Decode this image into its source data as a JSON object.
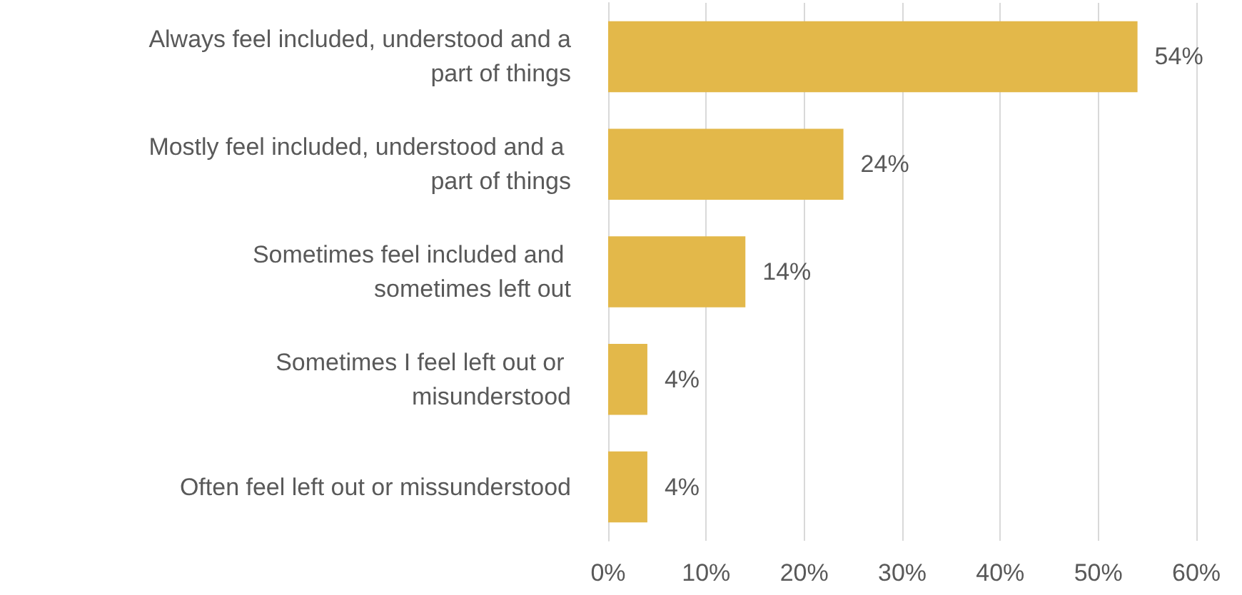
{
  "chart_data": {
    "type": "bar",
    "orientation": "horizontal",
    "categories": [
      "Always feel included, understood and a part of things",
      "Mostly feel included, understood and a part of things",
      "Sometimes feel included and sometimes left out",
      "Sometimes I feel left out or misunderstood",
      "Often feel left out or missunderstood"
    ],
    "values": [
      54,
      24,
      14,
      4,
      4
    ],
    "value_labels": [
      "54%",
      "24%",
      "14%",
      "4%",
      "4%"
    ],
    "color": "#e3b84a",
    "xlim": [
      0,
      60
    ],
    "xticks": [
      {
        "value": 0,
        "label": "0%"
      },
      {
        "value": 10,
        "label": "10%"
      },
      {
        "value": 20,
        "label": "20%"
      },
      {
        "value": 30,
        "label": "30%"
      },
      {
        "value": 40,
        "label": "40%"
      },
      {
        "value": 50,
        "label": "50%"
      },
      {
        "value": 60,
        "label": "60%"
      }
    ],
    "grid": "x"
  }
}
